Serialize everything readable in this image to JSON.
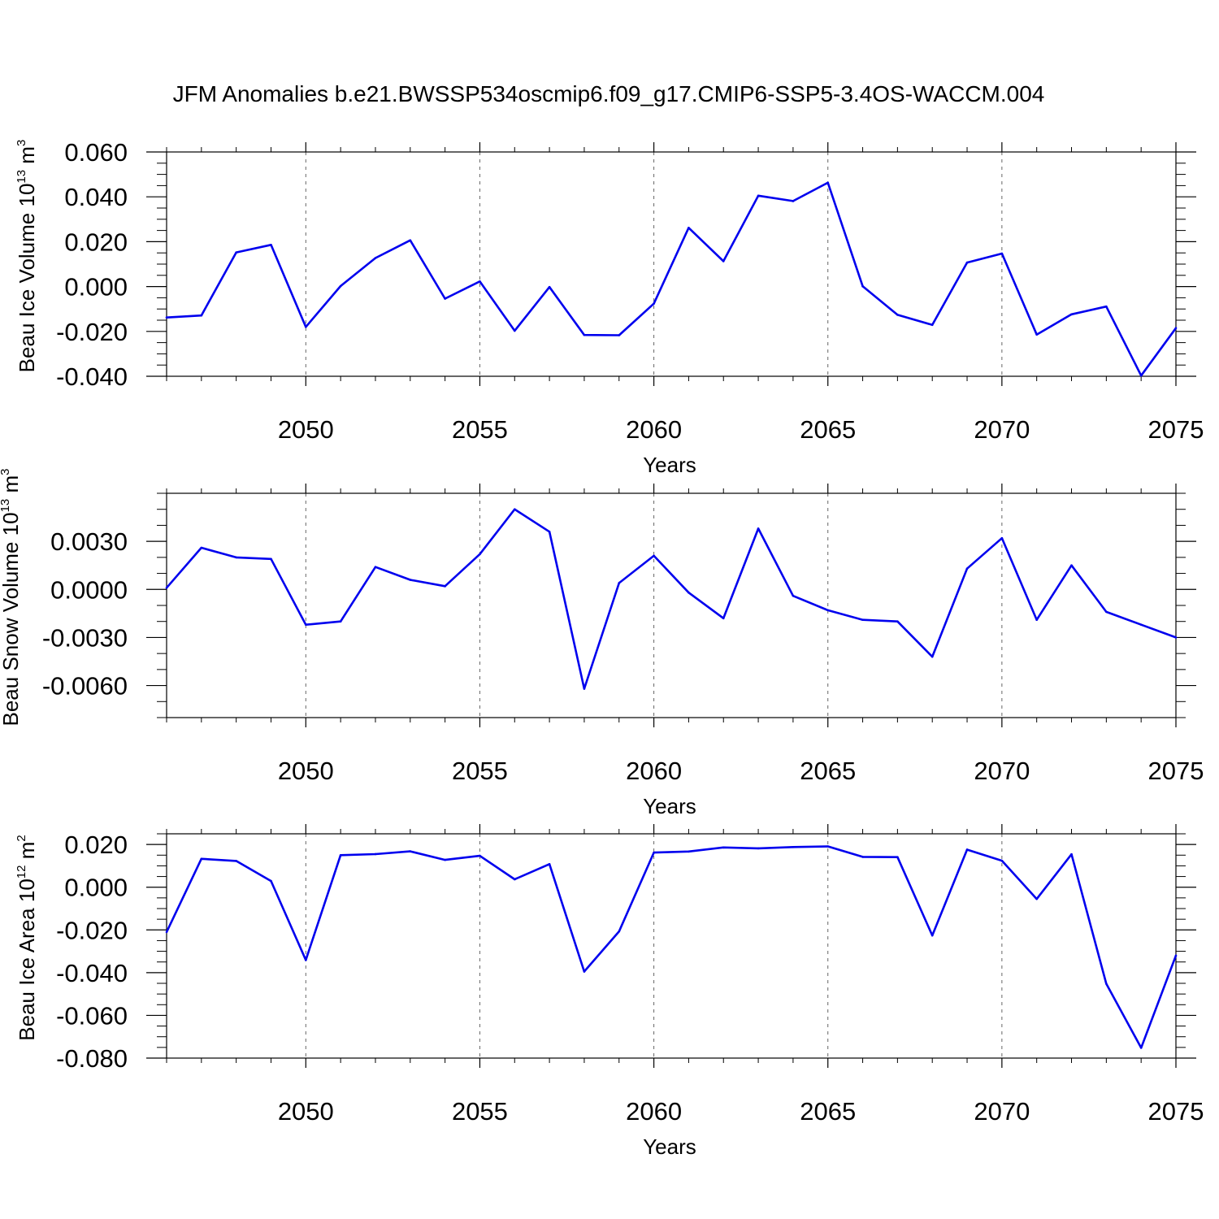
{
  "title": "JFM Anomalies b.e21.BWSSP534oscmip6.f09_g17.CMIP6-SSP5-3.4OS-WACCM.004",
  "line_color": "#0000ee",
  "chart_data": [
    {
      "type": "line",
      "xlabel": "Years",
      "ylabel": {
        "text": "Beau Ice Volume 10",
        "sup1": "13",
        "mid": " m",
        "sup2": "3"
      },
      "xlim": [
        2046,
        2075
      ],
      "ylim": [
        -0.04,
        0.06
      ],
      "y_ticks": [
        -0.04,
        -0.02,
        0.0,
        0.02,
        0.04,
        0.06
      ],
      "y_tick_labels": [
        "-0.040",
        "-0.020",
        "0.000",
        "0.020",
        "0.040",
        "0.060"
      ],
      "y_minor_step": 0.005,
      "x_ticks": [
        2050,
        2055,
        2060,
        2065,
        2070,
        2075
      ],
      "x_tick_labels": [
        "2050",
        "2055",
        "2060",
        "2065",
        "2070",
        "2075"
      ],
      "x_minor_step": 1,
      "vertical_gridlines": [
        2050,
        2055,
        2060,
        2065,
        2070
      ],
      "x": [
        2046,
        2047,
        2048,
        2049,
        2050,
        2051,
        2052,
        2053,
        2054,
        2055,
        2056,
        2057,
        2058,
        2059,
        2060,
        2061,
        2062,
        2063,
        2064,
        2065,
        2066,
        2067,
        2068,
        2069,
        2070,
        2071,
        2072,
        2073,
        2074,
        2075
      ],
      "series": [
        {
          "values": [
            -0.0138,
            -0.0129,
            0.0152,
            0.0186,
            -0.018,
            0.0002,
            0.0127,
            0.0206,
            -0.0054,
            0.0023,
            -0.0197,
            -0.0002,
            -0.0216,
            -0.0217,
            -0.0076,
            0.0262,
            0.0113,
            0.0405,
            0.0381,
            0.0463,
            0.0001,
            -0.0126,
            -0.0171,
            0.0107,
            0.0147,
            -0.0214,
            -0.0124,
            -0.0089,
            -0.0397,
            -0.0185
          ]
        }
      ]
    },
    {
      "type": "line",
      "xlabel": "Years",
      "ylabel": {
        "text": "Beau Snow Volume 10",
        "sup1": "13",
        "mid": " m",
        "sup2": "3"
      },
      "xlim": [
        2046,
        2075
      ],
      "ylim": [
        -0.008,
        0.006
      ],
      "y_ticks": [
        -0.006,
        -0.003,
        0.0,
        0.003
      ],
      "y_tick_labels": [
        "-0.0060",
        "-0.0030",
        "0.0000",
        "0.0030"
      ],
      "y_minor_step": 0.001,
      "x_ticks": [
        2050,
        2055,
        2060,
        2065,
        2070,
        2075
      ],
      "x_tick_labels": [
        "2050",
        "2055",
        "2060",
        "2065",
        "2070",
        "2075"
      ],
      "x_minor_step": 1,
      "vertical_gridlines": [
        2050,
        2055,
        2060,
        2065,
        2070
      ],
      "x": [
        2046,
        2047,
        2048,
        2049,
        2050,
        2051,
        2052,
        2053,
        2054,
        2055,
        2056,
        2057,
        2058,
        2059,
        2060,
        2061,
        2062,
        2063,
        2064,
        2065,
        2066,
        2067,
        2068,
        2069,
        2070,
        2071,
        2072,
        2073,
        2074,
        2075
      ],
      "series": [
        {
          "values": [
            0.0001,
            0.0026,
            0.002,
            0.0019,
            -0.0022,
            -0.002,
            0.0014,
            0.0006,
            0.0002,
            0.0022,
            0.005,
            0.0036,
            -0.0062,
            0.0004,
            0.0021,
            -0.0002,
            -0.0018,
            0.0038,
            -0.0004,
            -0.0013,
            -0.0019,
            -0.002,
            -0.0042,
            0.0013,
            0.0032,
            -0.0019,
            0.0015,
            -0.0014,
            -0.0022,
            -0.003
          ]
        }
      ]
    },
    {
      "type": "line",
      "xlabel": "Years",
      "ylabel": {
        "text": "Beau Ice Area 10",
        "sup1": "12",
        "mid": " m",
        "sup2": "2"
      },
      "xlim": [
        2046,
        2075
      ],
      "ylim": [
        -0.08,
        0.025
      ],
      "y_ticks": [
        -0.08,
        -0.06,
        -0.04,
        -0.02,
        0.0,
        0.02
      ],
      "y_tick_labels": [
        "-0.080",
        "-0.060",
        "-0.040",
        "-0.020",
        "0.000",
        "0.020"
      ],
      "y_minor_step": 0.005,
      "x_ticks": [
        2050,
        2055,
        2060,
        2065,
        2070,
        2075
      ],
      "x_tick_labels": [
        "2050",
        "2055",
        "2060",
        "2065",
        "2070",
        "2075"
      ],
      "x_minor_step": 1,
      "vertical_gridlines": [
        2050,
        2055,
        2060,
        2065,
        2070
      ],
      "x": [
        2046,
        2047,
        2048,
        2049,
        2050,
        2051,
        2052,
        2053,
        2054,
        2055,
        2056,
        2057,
        2058,
        2059,
        2060,
        2061,
        2062,
        2063,
        2064,
        2065,
        2066,
        2067,
        2068,
        2069,
        2070,
        2071,
        2072,
        2073,
        2074,
        2075
      ],
      "series": [
        {
          "values": [
            -0.021,
            0.0133,
            0.0123,
            0.0029,
            -0.0341,
            0.015,
            0.0155,
            0.0168,
            0.0128,
            0.0147,
            0.0037,
            0.0108,
            -0.0395,
            -0.0207,
            0.0162,
            0.0167,
            0.0186,
            0.0182,
            0.0188,
            0.0191,
            0.0142,
            0.0141,
            -0.0226,
            0.0176,
            0.0124,
            -0.0055,
            0.0154,
            -0.0452,
            -0.0752,
            -0.032
          ]
        }
      ]
    }
  ]
}
